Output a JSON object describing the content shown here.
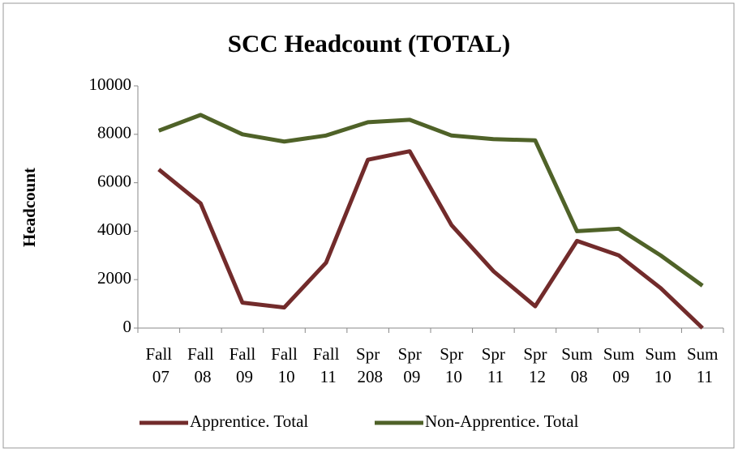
{
  "chart_data": {
    "type": "line",
    "title": "SCC Headcount (TOTAL)",
    "y_label": "Headcount",
    "categories": [
      "Fall 07",
      "Fall 08",
      "Fall 09",
      "Fall 10",
      "Fall 11",
      "Spr 208",
      "Spr 09",
      "Spr 10",
      "Spr 11",
      "Spr 12",
      "Sum 08",
      "Sum 09",
      "Sum 10",
      "Sum 11"
    ],
    "series": [
      {
        "name": "Apprentice. Total",
        "color": "#722b2b",
        "values": [
          6550,
          5150,
          1050,
          850,
          2700,
          6950,
          7300,
          4250,
          2350,
          900,
          3600,
          3000,
          1650,
          0
        ]
      },
      {
        "name": "Non-Apprentice. Total",
        "color": "#4f6228",
        "values": [
          8150,
          8800,
          8000,
          7700,
          7950,
          8500,
          8600,
          7950,
          7800,
          7750,
          4000,
          4100,
          3000,
          1750
        ]
      }
    ],
    "ylim": [
      0,
      10000
    ],
    "yticks": [
      0,
      2000,
      4000,
      6000,
      8000,
      10000
    ],
    "grid": false,
    "legend": "bottom"
  }
}
